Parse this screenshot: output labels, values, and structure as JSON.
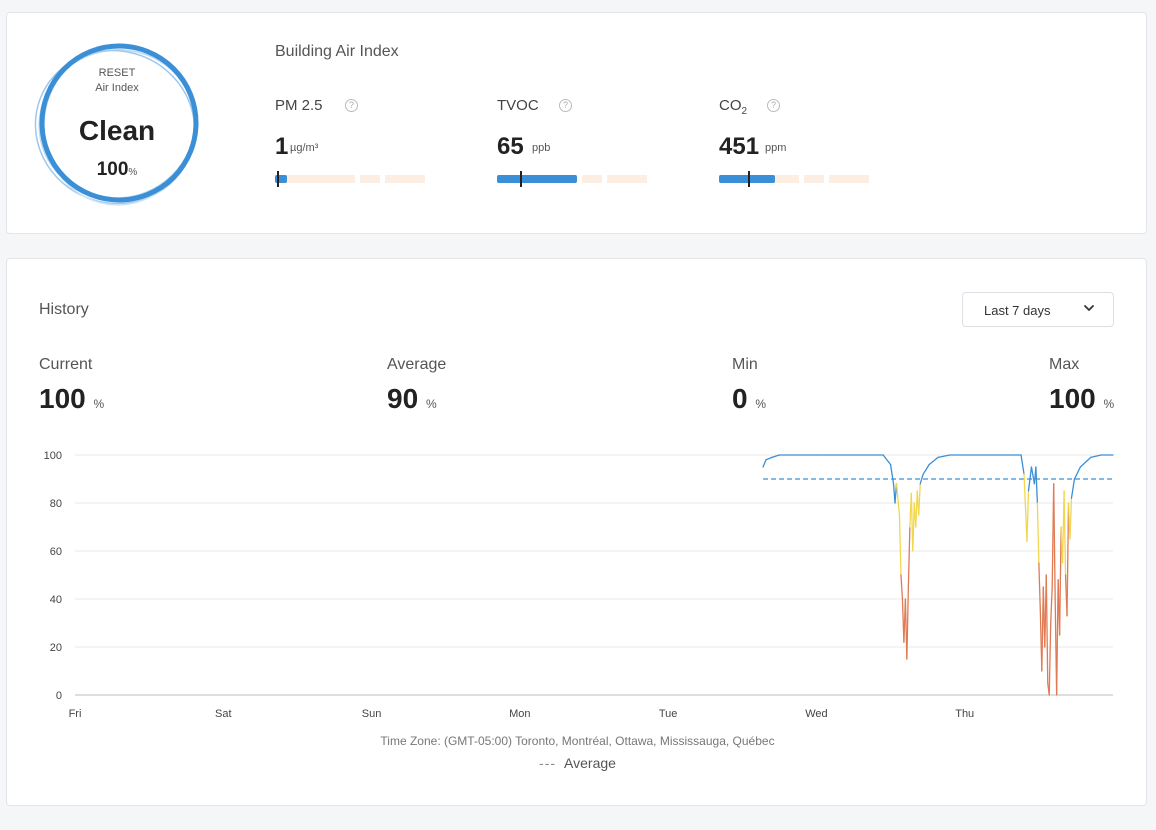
{
  "air_index": {
    "label_line1": "RESET",
    "label_line2": "Air Index",
    "status": "Clean",
    "value": "100",
    "unit": "%"
  },
  "building": {
    "title": "Building Air Index",
    "metrics": [
      {
        "name": "PM 2.5",
        "value": "1",
        "unit": "µg/m³",
        "fill_fraction": 0.08,
        "marker_fraction": 0.01
      },
      {
        "name": "TVOC",
        "value": "65",
        "unit": "ppb",
        "fill_fraction": 0.53,
        "marker_fraction": 0.15
      },
      {
        "name": "CO",
        "name_sub": "2",
        "value": "451",
        "unit": "ppm",
        "fill_fraction": 0.37,
        "marker_fraction": 0.19
      }
    ]
  },
  "history": {
    "title": "History",
    "range_selected": "Last 7 days",
    "stats": {
      "current": {
        "label": "Current",
        "value": "100",
        "unit": "%"
      },
      "average": {
        "label": "Average",
        "value": "90",
        "unit": "%"
      },
      "min": {
        "label": "Min",
        "value": "0",
        "unit": "%"
      },
      "max": {
        "label": "Max",
        "value": "100",
        "unit": "%"
      }
    },
    "timezone": "Time Zone: (GMT-05:00) Toronto, Montréal, Ottawa, Mississauga, Québec",
    "legend_average": "Average"
  },
  "colors": {
    "primary": "#3a8fd6",
    "good": "#3a8fd6",
    "moderate": "#f2d74e",
    "poor": "#e07a52",
    "bar_track": "#fdeee3"
  },
  "chart_data": {
    "type": "line",
    "x_labels": [
      "Fri",
      "Sat",
      "Sun",
      "Mon",
      "Tue",
      "Wed",
      "Thu"
    ],
    "x_range_days": [
      0,
      7
    ],
    "ylim": [
      0,
      100
    ],
    "y_ticks": [
      0,
      20,
      40,
      60,
      80,
      100
    ],
    "average": 90,
    "grid": true,
    "series": [
      {
        "name": "Air Index",
        "points": [
          [
            4.64,
            95
          ],
          [
            4.66,
            98
          ],
          [
            4.7,
            99
          ],
          [
            4.75,
            100
          ],
          [
            5.0,
            100
          ],
          [
            5.3,
            100
          ],
          [
            5.45,
            100
          ],
          [
            5.5,
            96
          ],
          [
            5.52,
            88
          ],
          [
            5.53,
            80
          ],
          [
            5.54,
            88
          ],
          [
            5.56,
            75
          ],
          [
            5.57,
            50
          ],
          [
            5.58,
            40
          ],
          [
            5.59,
            22
          ],
          [
            5.6,
            40
          ],
          [
            5.61,
            15
          ],
          [
            5.62,
            45
          ],
          [
            5.63,
            70
          ],
          [
            5.64,
            84
          ],
          [
            5.65,
            60
          ],
          [
            5.66,
            80
          ],
          [
            5.67,
            70
          ],
          [
            5.68,
            85
          ],
          [
            5.69,
            75
          ],
          [
            5.7,
            88
          ],
          [
            5.72,
            92
          ],
          [
            5.76,
            96
          ],
          [
            5.82,
            99
          ],
          [
            5.9,
            100
          ],
          [
            6.2,
            100
          ],
          [
            6.38,
            100
          ],
          [
            6.4,
            92
          ],
          [
            6.41,
            78
          ],
          [
            6.42,
            64
          ],
          [
            6.43,
            85
          ],
          [
            6.45,
            95
          ],
          [
            6.47,
            88
          ],
          [
            6.48,
            95
          ],
          [
            6.49,
            80
          ],
          [
            6.5,
            55
          ],
          [
            6.51,
            35
          ],
          [
            6.52,
            10
          ],
          [
            6.53,
            45
          ],
          [
            6.54,
            20
          ],
          [
            6.55,
            50
          ],
          [
            6.56,
            5
          ],
          [
            6.57,
            0
          ],
          [
            6.58,
            30
          ],
          [
            6.59,
            45
          ],
          [
            6.6,
            88
          ],
          [
            6.61,
            40
          ],
          [
            6.62,
            0
          ],
          [
            6.63,
            48
          ],
          [
            6.64,
            25
          ],
          [
            6.65,
            70
          ],
          [
            6.66,
            55
          ],
          [
            6.67,
            85
          ],
          [
            6.68,
            50
          ],
          [
            6.69,
            33
          ],
          [
            6.7,
            80
          ],
          [
            6.71,
            65
          ],
          [
            6.72,
            82
          ],
          [
            6.74,
            90
          ],
          [
            6.78,
            95
          ],
          [
            6.85,
            99
          ],
          [
            6.92,
            100
          ],
          [
            7.0,
            100
          ]
        ]
      }
    ]
  }
}
